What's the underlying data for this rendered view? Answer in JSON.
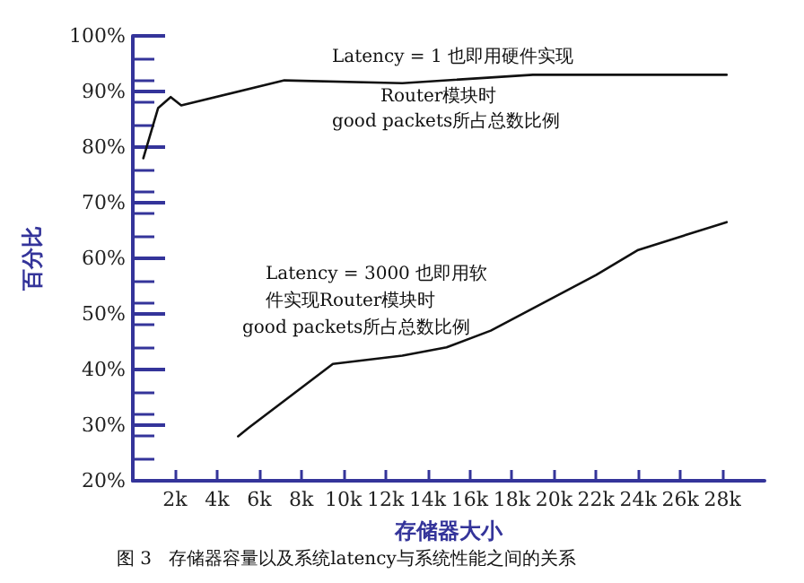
{
  "chart_data": {
    "type": "line",
    "xlabel": "存储器大小",
    "ylabel": "百分比",
    "annotations": [
      "Latency = 1 也即用硬件实现",
      "Router模块时",
      "good packets所占总数比例",
      "Latency = 3000 也即用软",
      "件实现Router模块时",
      "good packets所占总数比例",
      "图 3   存储器容量以及系统latency与系统性能之间的关系"
    ],
    "series": [
      {
        "color": "#111111",
        "x": [
          500,
          1200,
          1800,
          2300,
          7200,
          12800,
          19000,
          23500,
          28200
        ],
        "values": [
          78,
          87,
          89,
          87.5,
          92,
          91.5,
          93,
          93,
          93
        ]
      },
      {
        "color": "#111111",
        "x": [
          5000,
          5500,
          9500,
          12800,
          14900,
          17000,
          19500,
          22000,
          24000,
          28200
        ],
        "values": [
          28,
          29.5,
          41,
          42.5,
          44,
          47,
          52,
          57,
          61.5,
          66.5
        ]
      }
    ],
    "xlim": [
      0,
      30000
    ],
    "xticks": [
      {
        "value": 2000,
        "label": "2k"
      },
      {
        "value": 4000,
        "label": "4k"
      },
      {
        "value": 6000,
        "label": "6k"
      },
      {
        "value": 8000,
        "label": "8k"
      },
      {
        "value": 10000,
        "label": "10k"
      },
      {
        "value": 12000,
        "label": "12k"
      },
      {
        "value": 14000,
        "label": "14k"
      },
      {
        "value": 16000,
        "label": "16k"
      },
      {
        "value": 18000,
        "label": "18k"
      },
      {
        "value": 20000,
        "label": "20k"
      },
      {
        "value": 22000,
        "label": "22k"
      },
      {
        "value": 24000,
        "label": "24k"
      },
      {
        "value": 26000,
        "label": "26k"
      },
      {
        "value": 28000,
        "label": "28k"
      }
    ],
    "ylim": [
      20,
      100
    ],
    "yticks": [
      {
        "value": 20,
        "label": "20%"
      },
      {
        "value": 30,
        "label": "30%"
      },
      {
        "value": 40,
        "label": "40%"
      },
      {
        "value": 50,
        "label": "50%"
      },
      {
        "value": 60,
        "label": "60%"
      },
      {
        "value": 70,
        "label": "70%"
      },
      {
        "value": 80,
        "label": "80%"
      },
      {
        "value": 90,
        "label": "90%"
      },
      {
        "value": 100,
        "label": "100%"
      }
    ],
    "grid": false,
    "marker": "none",
    "line_style": "solid"
  }
}
